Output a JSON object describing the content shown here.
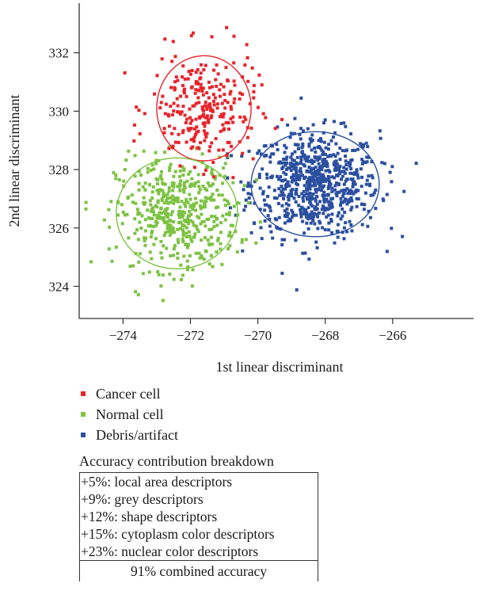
{
  "chart_data": {
    "type": "scatter",
    "title": "",
    "xlabel": "1st linear discriminant",
    "ylabel": "2nd linear discriminant",
    "xlim": [
      -275.3,
      -263.6
    ],
    "ylim": [
      322.9,
      333.7
    ],
    "xticks": [
      -274,
      -272,
      -270,
      -268,
      -266
    ],
    "yticks": [
      324,
      326,
      328,
      330,
      332
    ],
    "grid": false,
    "legend_position": "below",
    "series": [
      {
        "name": "Cancer cell",
        "color": "#e8232a",
        "n_points": 260,
        "center": [
          -271.6,
          330.1
        ],
        "ellipse_radii": [
          1.4,
          1.8
        ],
        "spread": [
          0.78,
          0.95
        ],
        "extent_x": [
          -274.3,
          -269.1
        ],
        "extent_y": [
          327.6,
          333.5
        ]
      },
      {
        "name": "Normal cell",
        "color": "#7cc242",
        "n_points": 480,
        "center": [
          -272.4,
          326.5
        ],
        "ellipse_radii": [
          1.8,
          1.9
        ],
        "spread": [
          0.9,
          0.95
        ],
        "extent_x": [
          -275.1,
          -269.3
        ],
        "extent_y": [
          323.2,
          329.8
        ]
      },
      {
        "name": "Debris/artifact",
        "color": "#2b4fa0",
        "n_points": 720,
        "center": [
          -268.3,
          327.5
        ],
        "ellipse_radii": [
          1.9,
          1.8
        ],
        "spread": [
          0.95,
          0.9
        ],
        "extent_x": [
          -270.9,
          -265.1
        ],
        "extent_y": [
          323.1,
          332.6
        ]
      }
    ]
  },
  "legend": {
    "items": [
      {
        "label": "Cancer cell",
        "color": "#e8232a"
      },
      {
        "label": "Normal cell",
        "color": "#7cc242"
      },
      {
        "label": "Debris/artifact",
        "color": "#2b4fa0"
      }
    ]
  },
  "breakdown": {
    "title": "Accuracy contribution breakdown",
    "lines": [
      "+5%: local area descriptors",
      "+9%: grey descriptors",
      "+12%: shape descriptors",
      "+15%: cytoplasm color descriptors",
      "+23%: nuclear color descriptors"
    ],
    "total": "91% combined accuracy"
  }
}
